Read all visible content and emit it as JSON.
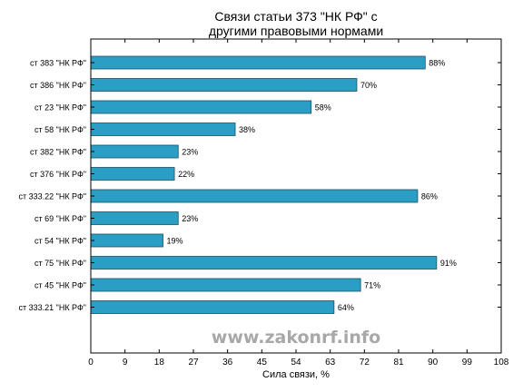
{
  "chart_data": {
    "type": "bar",
    "orientation": "horizontal",
    "title_lines": [
      "Связи статьи 373 \"НК РФ\" с",
      "другими правовыми нормами"
    ],
    "xlabel": "Сила связи, %",
    "ylabel": "",
    "xlim": [
      0,
      108
    ],
    "xticks": [
      0,
      9,
      18,
      27,
      36,
      45,
      54,
      63,
      72,
      81,
      90,
      99,
      108
    ],
    "categories": [
      "ст 383 \"НК РФ\"",
      "ст 386 \"НК РФ\"",
      "ст 23 \"НК РФ\"",
      "ст 58 \"НК РФ\"",
      "ст 382 \"НК РФ\"",
      "ст 376 \"НК РФ\"",
      "ст 333.22 \"НК РФ\"",
      "ст 69 \"НК РФ\"",
      "ст 54 \"НК РФ\"",
      "ст 75 \"НК РФ\"",
      "ст 45 \"НК РФ\"",
      "ст 333.21 \"НК РФ\""
    ],
    "values": [
      88,
      70,
      58,
      38,
      23,
      22,
      86,
      23,
      19,
      91,
      71,
      64
    ],
    "value_labels": [
      "88%",
      "70%",
      "58%",
      "38%",
      "23%",
      "22%",
      "86%",
      "23%",
      "19%",
      "91%",
      "71%",
      "64%"
    ],
    "bar_color": "#2b9ec6",
    "bar_edge_color": "#1a4f63",
    "grid": false,
    "legend": "none"
  },
  "watermark": "www.zakonrf.info"
}
